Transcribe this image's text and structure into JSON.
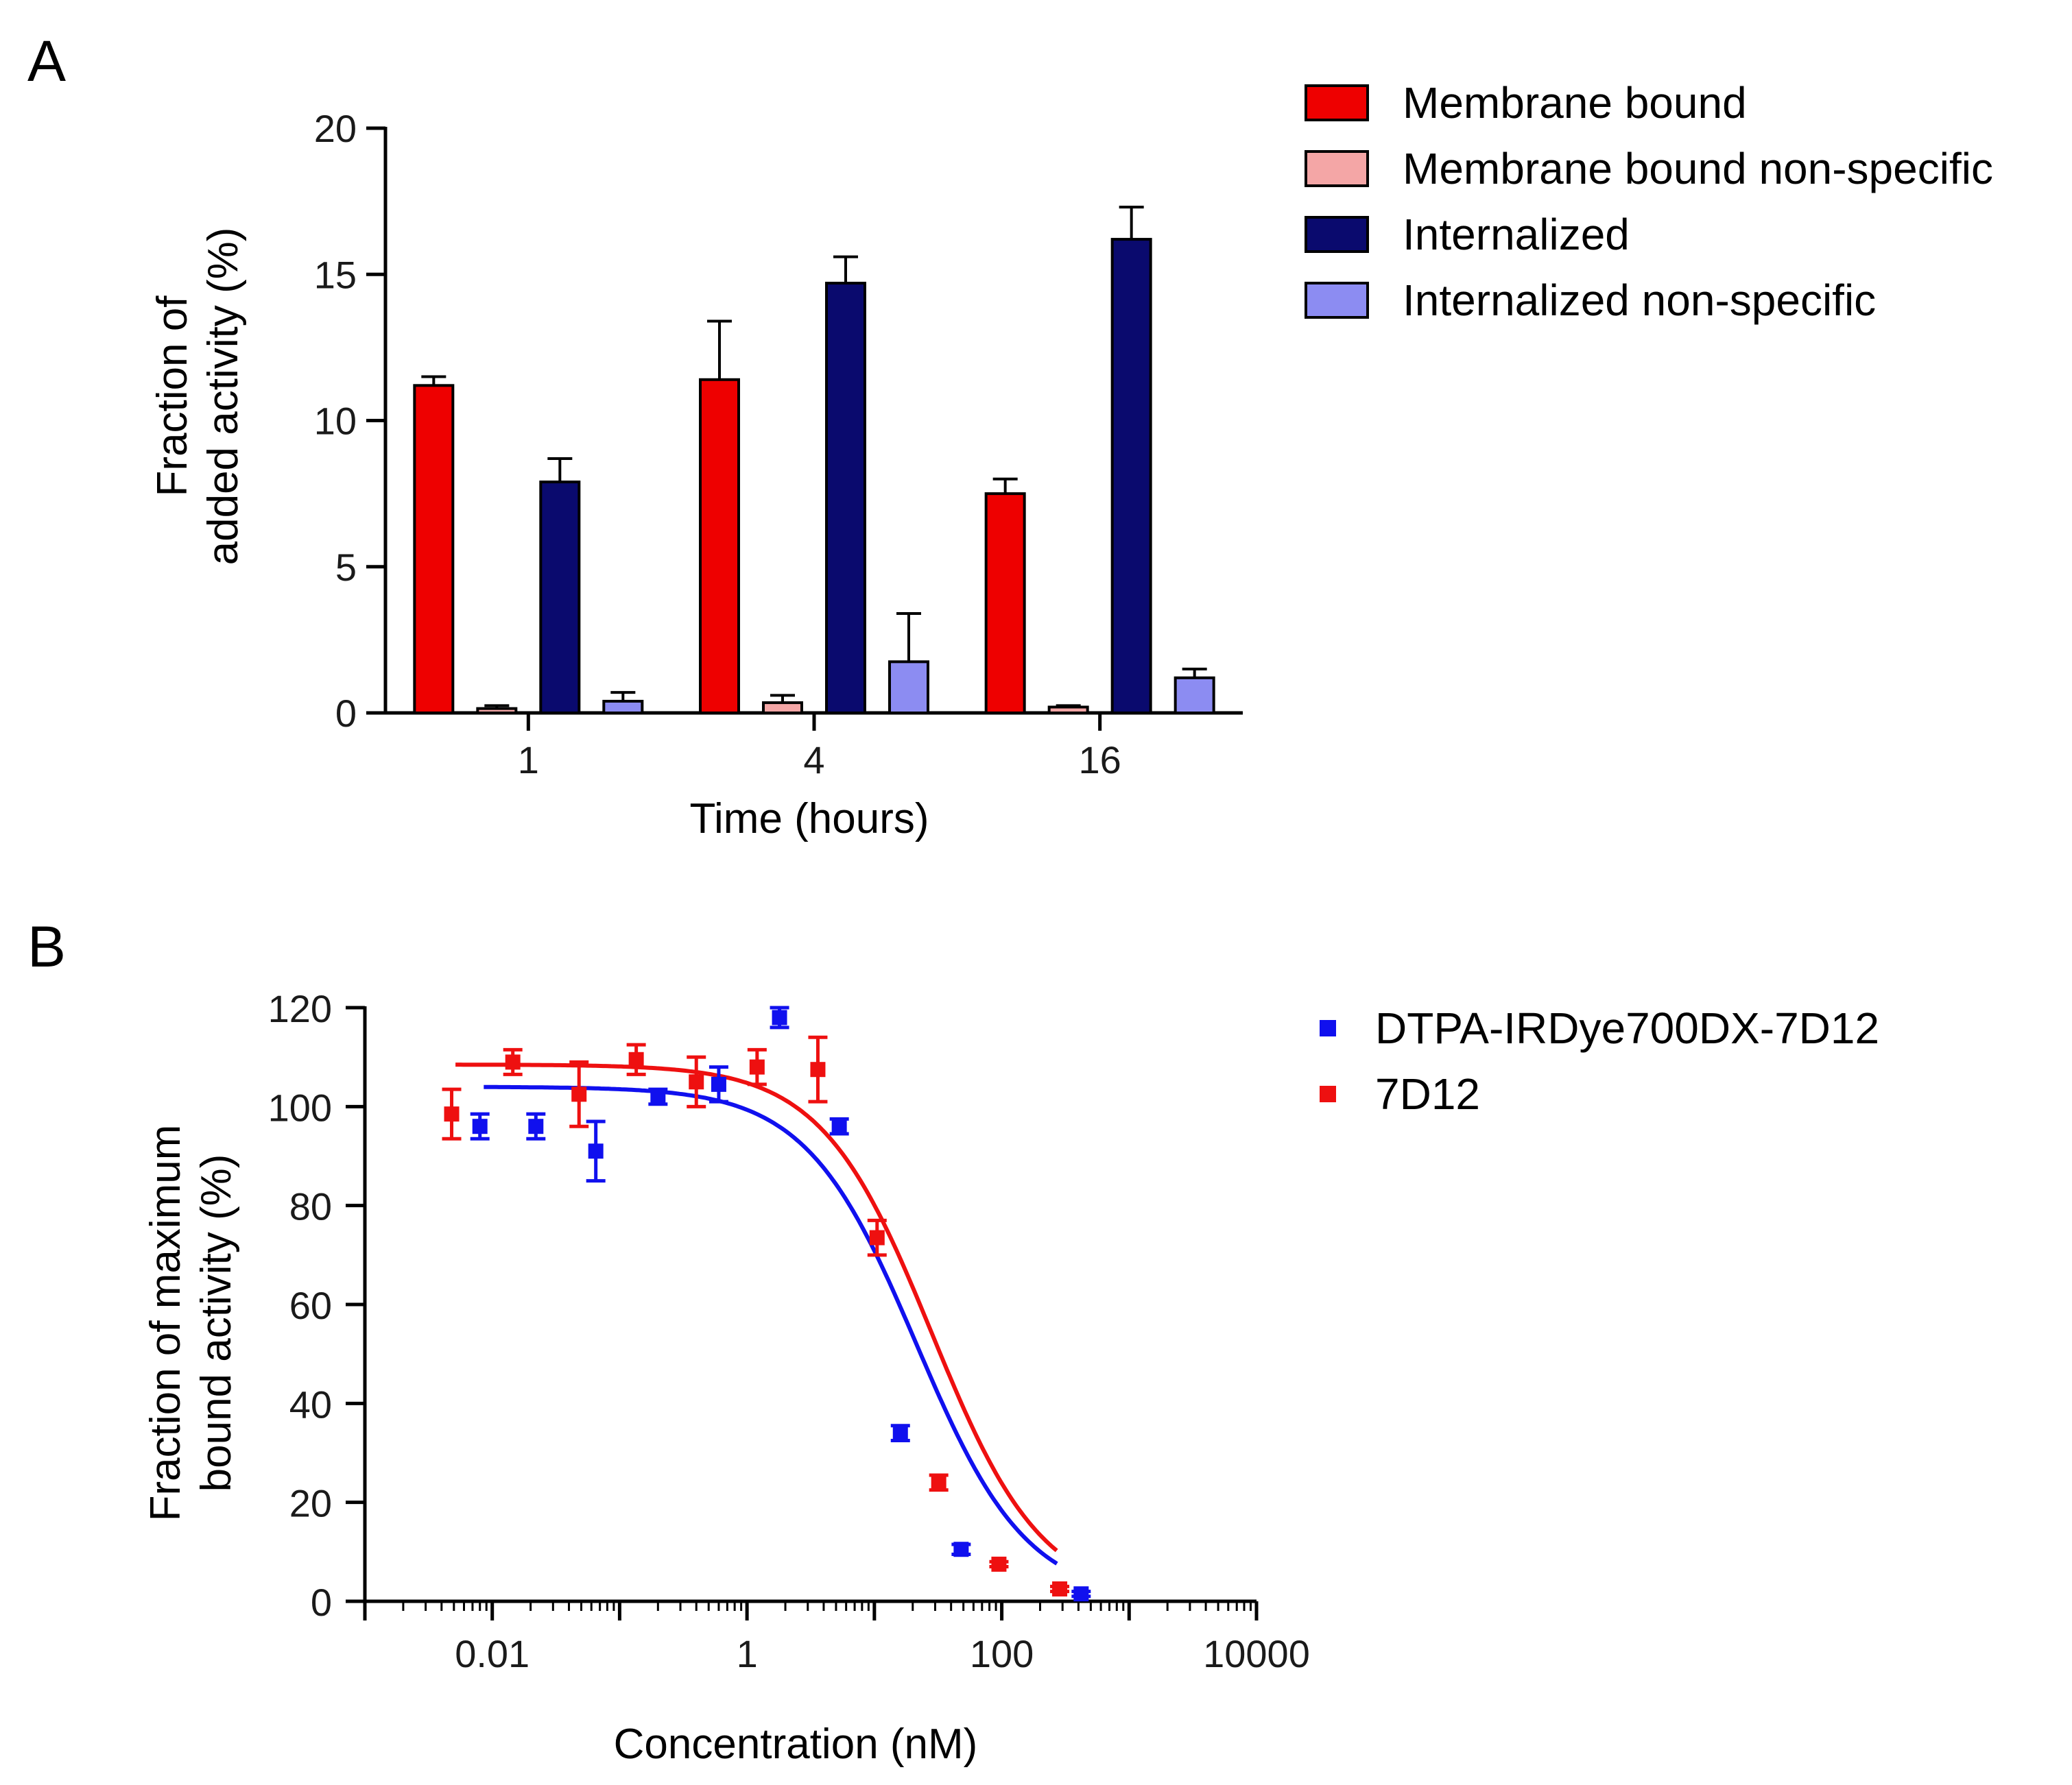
{
  "panels": {
    "a": {
      "label": "A"
    },
    "b": {
      "label": "B"
    }
  },
  "chart_data": [
    {
      "type": "bar",
      "panel": "A",
      "title": "",
      "xlabel": "Time (hours)",
      "ylabel_line1": "Fraction of",
      "ylabel_line2": "added activity (%)",
      "categories": [
        "1",
        "4",
        "16"
      ],
      "ylim": [
        0,
        20
      ],
      "yticks": [
        0,
        5,
        10,
        15,
        20
      ],
      "legend_position": "top-right",
      "series": [
        {
          "name": "Membrane bound",
          "color": "#ee0000",
          "values": [
            11.2,
            11.4,
            7.5
          ],
          "errors": [
            0.3,
            2.0,
            0.5
          ]
        },
        {
          "name": "Membrane bound non-specific",
          "color": "#f4a6a6",
          "values": [
            0.15,
            0.35,
            0.2
          ],
          "errors": [
            0.1,
            0.25,
            0.05
          ]
        },
        {
          "name": "Internalized",
          "color": "#0a0a6e",
          "values": [
            7.9,
            14.7,
            16.2
          ],
          "errors": [
            0.8,
            0.9,
            1.1
          ]
        },
        {
          "name": "Internalized non-specific",
          "color": "#8c8cf2",
          "values": [
            0.4,
            1.75,
            1.2
          ],
          "errors": [
            0.3,
            1.65,
            0.3
          ]
        }
      ]
    },
    {
      "type": "scatter",
      "panel": "B",
      "title": "",
      "xlabel": "Concentration (nM)",
      "ylabel_line1": "Fraction of maximum",
      "ylabel_line2": "bound activity (%)",
      "xscale": "log",
      "xlim": [
        0.001,
        10000
      ],
      "ylim": [
        0,
        120
      ],
      "xticks": [
        0.01,
        1,
        100,
        10000
      ],
      "xtick_labels": [
        "0.01",
        "1",
        "100",
        "10000"
      ],
      "yticks": [
        0,
        20,
        40,
        60,
        80,
        100,
        120
      ],
      "legend_position": "top-right",
      "series": [
        {
          "name": "DTPA-IRDye700DX-7D12",
          "color": "#1010ee",
          "points": [
            {
              "x": 0.008,
              "y": 96,
              "err": 2.5
            },
            {
              "x": 0.022,
              "y": 96,
              "err": 2.5
            },
            {
              "x": 0.065,
              "y": 91,
              "err": 6
            },
            {
              "x": 0.2,
              "y": 102,
              "err": 1.5
            },
            {
              "x": 0.6,
              "y": 104.5,
              "err": 3.5
            },
            {
              "x": 1.8,
              "y": 118,
              "err": 2
            },
            {
              "x": 5.3,
              "y": 96,
              "err": 1.5
            },
            {
              "x": 16,
              "y": 34,
              "err": 1.5
            },
            {
              "x": 48,
              "y": 10.5,
              "err": 1
            },
            {
              "x": 420,
              "y": 1.5,
              "err": 0.5
            }
          ],
          "fit": {
            "top": 104,
            "bottom": 0,
            "log_ic50": 1.33,
            "hill": -1.0
          }
        },
        {
          "name": "7D12",
          "color": "#ee1010",
          "points": [
            {
              "x": 0.0048,
              "y": 98.5,
              "err": 5
            },
            {
              "x": 0.0145,
              "y": 109,
              "err": 2.5
            },
            {
              "x": 0.048,
              "y": 102.5,
              "err": 6.5
            },
            {
              "x": 0.135,
              "y": 109.5,
              "err": 3
            },
            {
              "x": 0.4,
              "y": 105,
              "err": 5
            },
            {
              "x": 1.2,
              "y": 108,
              "err": 3.5
            },
            {
              "x": 3.6,
              "y": 107.5,
              "err": 6.5
            },
            {
              "x": 10.5,
              "y": 73.5,
              "err": 3.5
            },
            {
              "x": 32,
              "y": 24,
              "err": 1.5
            },
            {
              "x": 95,
              "y": 7.5,
              "err": 0.5
            },
            {
              "x": 285,
              "y": 2.5,
              "err": 0.5
            }
          ],
          "fit": {
            "top": 108.5,
            "bottom": 0,
            "log_ic50": 1.45,
            "hill": -1.0
          }
        }
      ]
    }
  ]
}
